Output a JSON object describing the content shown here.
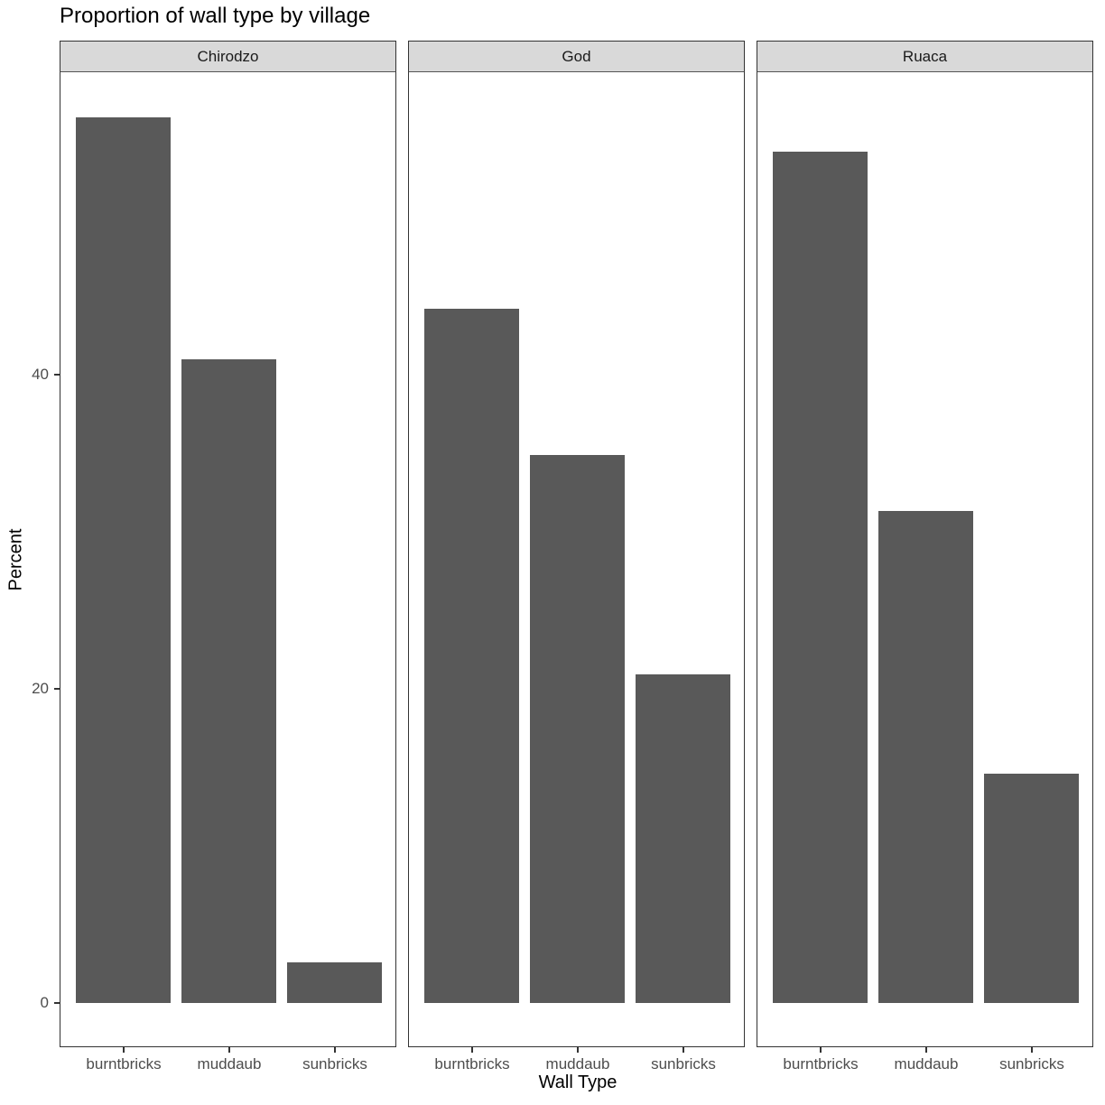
{
  "chart_data": {
    "type": "bar",
    "title": "Proportion of wall type by village",
    "xlabel": "Wall Type",
    "ylabel": "Percent",
    "ylim": [
      -2.8,
      59.3
    ],
    "yticks": [
      0,
      20,
      40
    ],
    "facets": [
      "Chirodzo",
      "God",
      "Ruaca"
    ],
    "categories": [
      "burntbricks",
      "muddaub",
      "sunbricks"
    ],
    "series": [
      {
        "name": "Chirodzo",
        "values": [
          56.4,
          41.0,
          2.6
        ]
      },
      {
        "name": "God",
        "values": [
          44.2,
          34.9,
          20.9
        ]
      },
      {
        "name": "Ruaca",
        "values": [
          54.2,
          31.3,
          14.6
        ]
      }
    ],
    "grid": false,
    "legend": "none"
  },
  "labels": {
    "title": "Proportion of wall type by village",
    "xlabel": "Wall Type",
    "ylabel": "Percent",
    "yticks": [
      "0",
      "20",
      "40"
    ],
    "facets": [
      "Chirodzo",
      "God",
      "Ruaca"
    ],
    "categories": [
      "burntbricks",
      "muddaub",
      "sunbricks"
    ]
  }
}
